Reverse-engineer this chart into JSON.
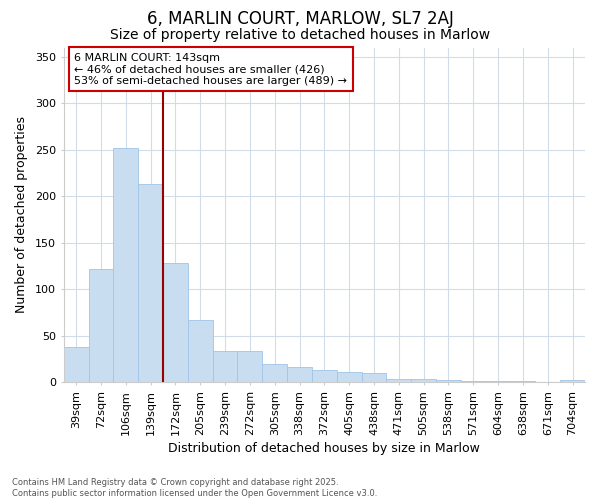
{
  "title1": "6, MARLIN COURT, MARLOW, SL7 2AJ",
  "title2": "Size of property relative to detached houses in Marlow",
  "xlabel": "Distribution of detached houses by size in Marlow",
  "ylabel": "Number of detached properties",
  "categories": [
    "39sqm",
    "72sqm",
    "106sqm",
    "139sqm",
    "172sqm",
    "205sqm",
    "239sqm",
    "272sqm",
    "305sqm",
    "338sqm",
    "372sqm",
    "405sqm",
    "438sqm",
    "471sqm",
    "505sqm",
    "538sqm",
    "571sqm",
    "604sqm",
    "638sqm",
    "671sqm",
    "704sqm"
  ],
  "values": [
    38,
    122,
    252,
    213,
    128,
    67,
    34,
    34,
    20,
    16,
    13,
    11,
    10,
    4,
    4,
    2,
    1,
    1,
    1,
    0,
    3
  ],
  "bar_color": "#c8ddf0",
  "bar_edge_color": "#a0c4e8",
  "vline_x_index": 3,
  "vline_color": "#990000",
  "annotation_text": "6 MARLIN COURT: 143sqm\n← 46% of detached houses are smaller (426)\n53% of semi-detached houses are larger (489) →",
  "annotation_box_color": "#ffffff",
  "annotation_box_edge": "#cc0000",
  "ylim": [
    0,
    360
  ],
  "yticks": [
    0,
    50,
    100,
    150,
    200,
    250,
    300,
    350
  ],
  "footnote": "Contains HM Land Registry data © Crown copyright and database right 2025.\nContains public sector information licensed under the Open Government Licence v3.0.",
  "bg_color": "#ffffff",
  "plot_bg_color": "#ffffff",
  "grid_color": "#d0dce8",
  "title1_fontsize": 12,
  "title2_fontsize": 10,
  "axis_label_fontsize": 9,
  "tick_fontsize": 8,
  "annot_fontsize": 8
}
